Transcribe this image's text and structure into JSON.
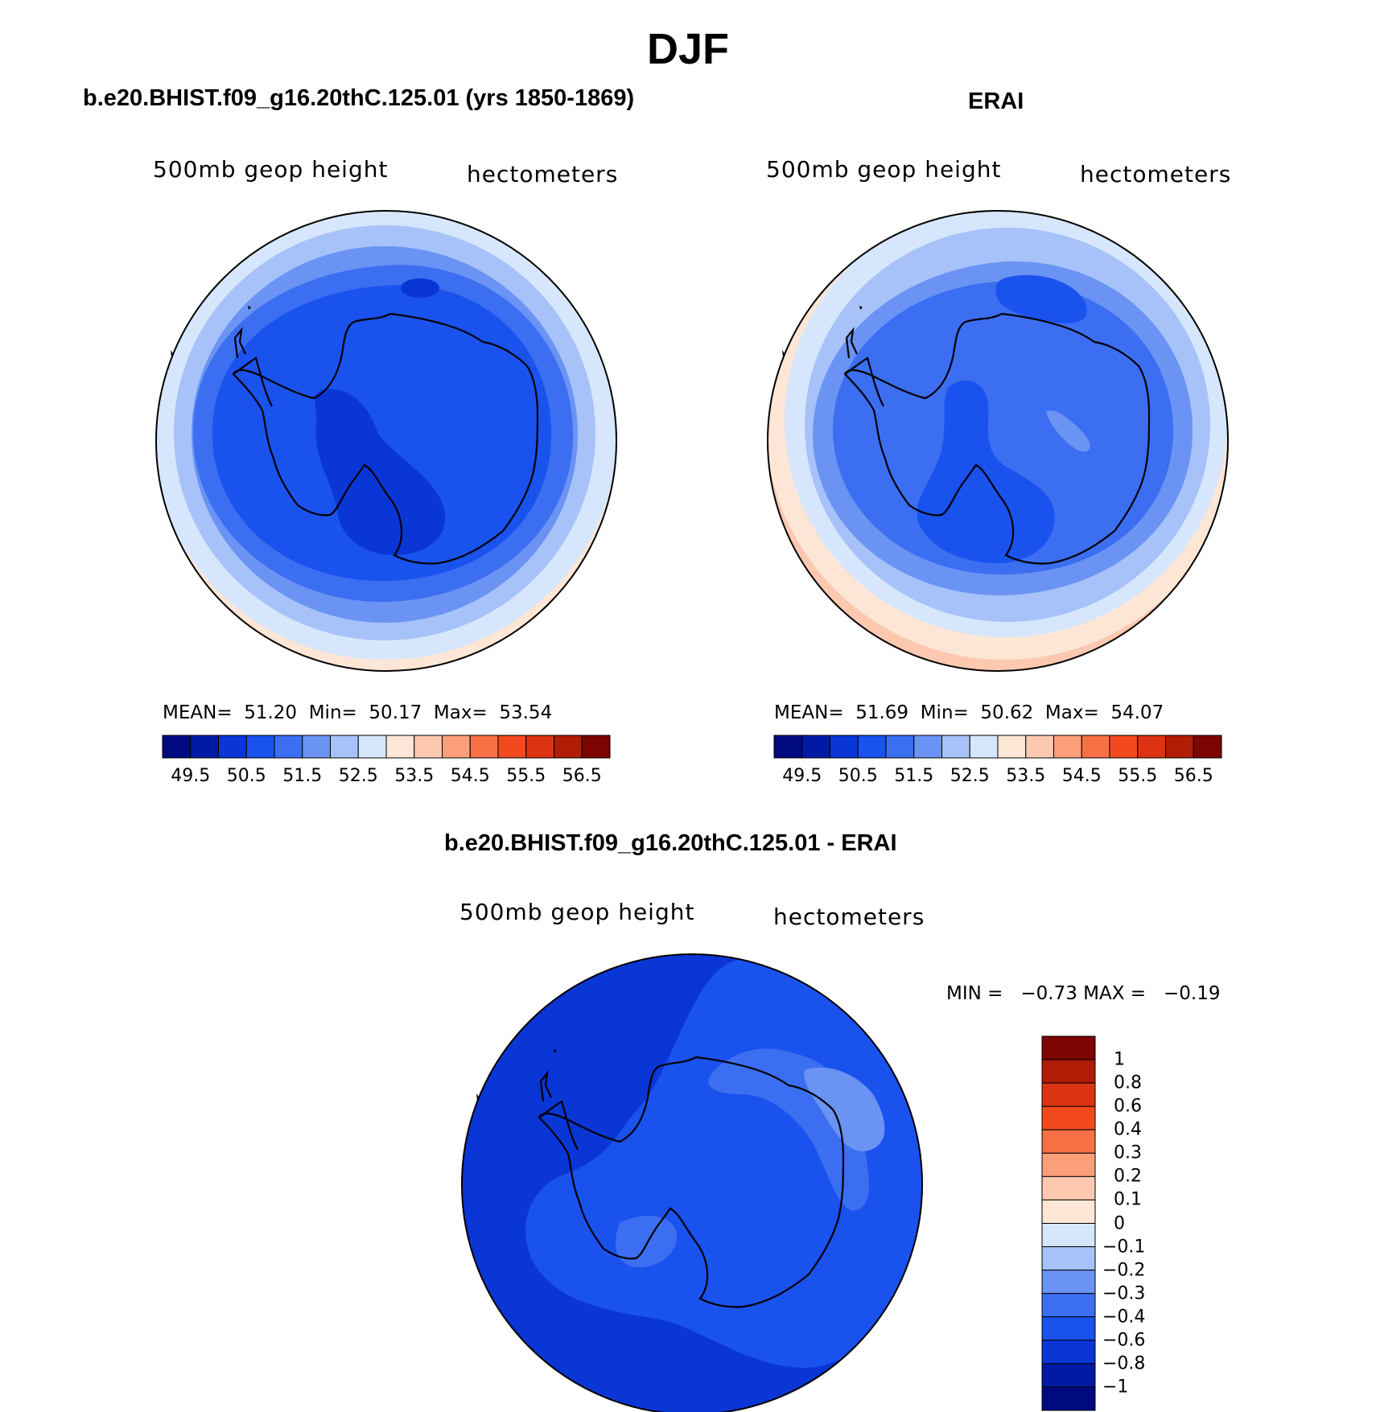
{
  "figure": {
    "title": "DJF"
  },
  "panels": [
    {
      "title": "b.e20.BHIST.f09_g16.20thC.125.01 (yrs 1850-1869)",
      "variable_label": "500mb  geop  height",
      "units_label": "hectometers",
      "stats": {
        "mean_label": "MEAN=",
        "mean": "51.20",
        "min_label": "Min=",
        "min": "50.17",
        "max_label": "Max=",
        "max": "53.54"
      }
    },
    {
      "title": "ERAI",
      "variable_label": "500mb  geop  height",
      "units_label": "hectometers",
      "stats": {
        "mean_label": "MEAN=",
        "mean": "51.69",
        "min_label": "Min=",
        "min": "50.62",
        "max_label": "Max=",
        "max": "54.07"
      }
    },
    {
      "title": "b.e20.BHIST.f09_g16.20thC.125.01 - ERAI",
      "variable_label": "500mb  geop  height",
      "units_label": "hectometers",
      "stats": {
        "min_label": "MIN =",
        "min": "−0.73",
        "max_label": "MAX =",
        "max": "−0.19"
      }
    }
  ],
  "colorbar_abs": {
    "ticks": [
      "49.5",
      "50.5",
      "51.5",
      "52.5",
      "53.5",
      "54.5",
      "55.5",
      "56.5"
    ],
    "colors": [
      "#000a80",
      "#001aa6",
      "#0a36d6",
      "#1a52ee",
      "#3c6ef2",
      "#6a93f4",
      "#a6c2f8",
      "#d6e6fc",
      "#fde6d6",
      "#fcc8b0",
      "#fa9f7a",
      "#f77046",
      "#f24a1e",
      "#dc3412",
      "#b01c06",
      "#7d0402"
    ]
  },
  "colorbar_diff": {
    "labels": [
      "1",
      "0.8",
      "0.6",
      "0.4",
      "0.3",
      "0.2",
      "0.1",
      "0",
      "−0.1",
      "−0.2",
      "−0.3",
      "−0.4",
      "−0.6",
      "−0.8",
      "−1"
    ],
    "colors": [
      "#7d0402",
      "#b01c06",
      "#dc3412",
      "#f24a1e",
      "#f77046",
      "#fa9f7a",
      "#fcc8b0",
      "#fde6d6",
      "#d6e6fc",
      "#a6c2f8",
      "#6a93f4",
      "#3c6ef2",
      "#1a52ee",
      "#0a36d6",
      "#001aa6",
      "#000a80"
    ]
  },
  "field_colors": {
    "model": [
      "#fde6d6",
      "#d6e6fc",
      "#a6c2f8",
      "#6a93f4",
      "#3c6ef2",
      "#1a52ee",
      "#0a36d6"
    ],
    "erai": [
      "#fcc8b0",
      "#fde6d6",
      "#d6e6fc",
      "#a6c2f8",
      "#6a93f4",
      "#3c6ef2",
      "#1a52ee"
    ],
    "diff": [
      "#0a36d6",
      "#1a52ee",
      "#3c6ef2",
      "#6a93f4"
    ]
  }
}
